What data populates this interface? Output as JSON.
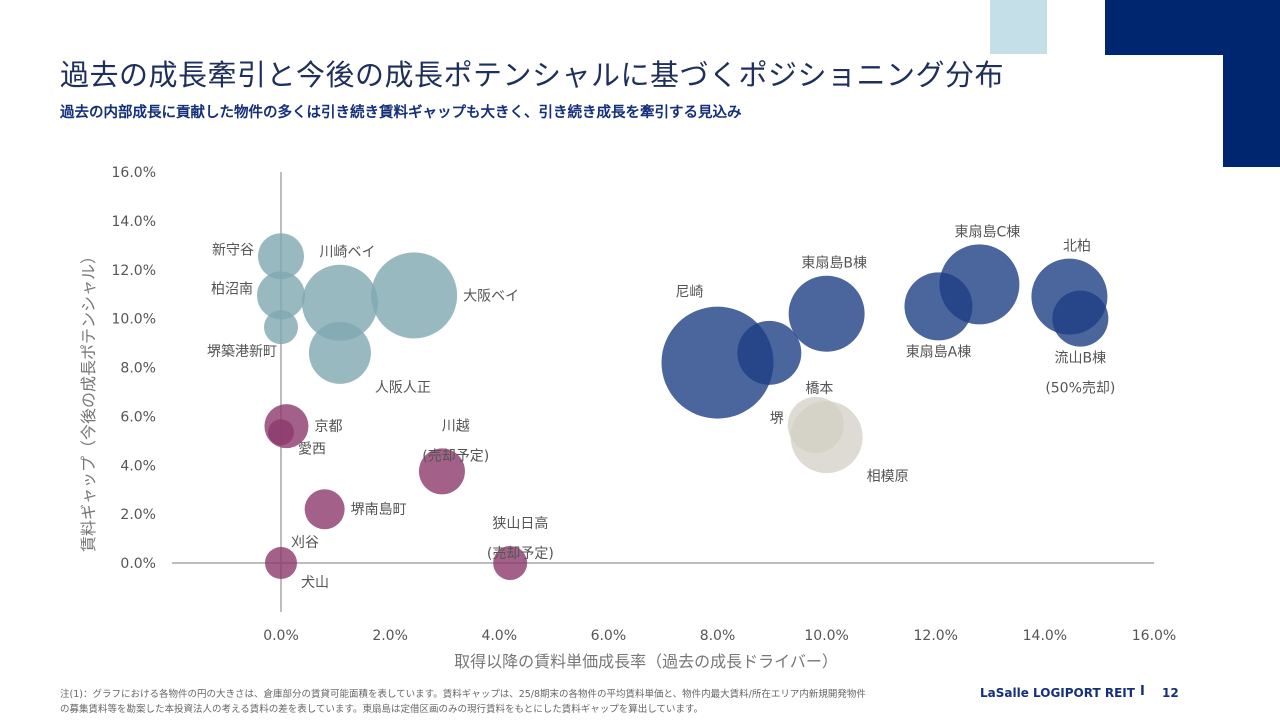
{
  "header": {
    "title": "過去の成長牽引と今後の成長ポテンシャルに基づくポジショニング分布",
    "subtitle": "過去の内部成長に貢献した物件の多くは引き続き賃料ギャップも大きく、引き続き成長を牽引する見込み"
  },
  "colors": {
    "brand_dark": "#00266f",
    "brand_light": "#c5dfe9",
    "teal_group": "#7fa8b2",
    "purple_group": "#8c3a6b",
    "navy_group": "#1e3f85",
    "beige_group": "#d2cfc4"
  },
  "chart_data": {
    "type": "scatter",
    "subtype": "bubble",
    "title": "過去の成長牽引と今後の成長ポテンシャルに基づくポジショニング分布",
    "xlabel": "取得以降の賃料単価成長率（過去の成長ドライバー）",
    "ylabel": "賃料ギャップ（今後の成長ポテンシャル）",
    "xlim": [
      0,
      16
    ],
    "ylim": [
      0,
      16
    ],
    "x_ticks": [
      "0.0%",
      "2.0%",
      "4.0%",
      "6.0%",
      "8.0%",
      "10.0%",
      "12.0%",
      "14.0%",
      "16.0%"
    ],
    "y_ticks": [
      "0.0%",
      "2.0%",
      "4.0%",
      "6.0%",
      "8.0%",
      "10.0%",
      "12.0%",
      "14.0%",
      "16.0%"
    ],
    "size_meaning": "倉庫部分の賃貸可能面積（相対値）",
    "grid": false,
    "series": [
      {
        "name": "teal",
        "color": "#7fa8b2",
        "points": [
          {
            "label": "新守谷",
            "x": 0.0,
            "y": 12.55,
            "size": 23,
            "label_pos": "left"
          },
          {
            "label": "柏沼南",
            "x": 0.0,
            "y": 10.95,
            "size": 24,
            "label_pos": "left"
          },
          {
            "label": "堺築港新町",
            "x": 0.0,
            "y": 9.65,
            "size": 17,
            "label_pos": "below-left"
          },
          {
            "label": "川崎ベイ",
            "x": 1.08,
            "y": 10.65,
            "size": 38,
            "label_pos": "top"
          },
          {
            "label": "大阪ベイ",
            "x": 2.44,
            "y": 10.95,
            "size": 43,
            "label_pos": "right"
          },
          {
            "label": "人阪人正",
            "x": 1.08,
            "y": 8.6,
            "size": 31,
            "label_pos": "below-right"
          }
        ]
      },
      {
        "name": "purple",
        "color": "#8c3a6b",
        "points": [
          {
            "label": "京都",
            "x": 0.1,
            "y": 5.6,
            "size": 22,
            "label_pos": "right"
          },
          {
            "label": "愛西",
            "x": 0.0,
            "y": 5.35,
            "size": 13,
            "label_pos": "below-right"
          },
          {
            "label": "堺南島町",
            "x": 0.8,
            "y": 2.2,
            "size": 20,
            "label_pos": "right"
          },
          {
            "label": "刈谷",
            "x": 0.0,
            "y": 0.0,
            "size": 16,
            "label_pos": "above-right"
          },
          {
            "label": "犬山",
            "x": 0.0,
            "y": 0.0,
            "size": 16,
            "label_pos": "below-right"
          },
          {
            "label": "川越\n(売却予定)",
            "x": 2.95,
            "y": 3.75,
            "size": 23,
            "label_pos": "upper-right"
          },
          {
            "label": "狭山日高\n(売却予定)",
            "x": 4.2,
            "y": 0.0,
            "size": 17,
            "label_pos": "upper-right"
          }
        ]
      },
      {
        "name": "navy",
        "color": "#1e3f85",
        "points": [
          {
            "label": "尼崎",
            "x": 8.0,
            "y": 8.2,
            "size": 56,
            "label_pos": "upper-left"
          },
          {
            "label": "橋本",
            "x": 8.95,
            "y": 8.6,
            "size": 32,
            "label_pos": "below-right"
          },
          {
            "label": "東扇島B棟",
            "x": 10.0,
            "y": 10.2,
            "size": 38,
            "label_pos": "top"
          },
          {
            "label": "東扇島A棟",
            "x": 12.05,
            "y": 10.5,
            "size": 34,
            "label_pos": "below"
          },
          {
            "label": "東扇島C棟",
            "x": 12.8,
            "y": 11.4,
            "size": 40,
            "label_pos": "top"
          },
          {
            "label": "北柏",
            "x": 14.45,
            "y": 10.9,
            "size": 38,
            "label_pos": "top"
          },
          {
            "label": "流山B棟\n(50%売却)",
            "x": 14.65,
            "y": 10.0,
            "size": 28,
            "label_pos": "below"
          }
        ]
      },
      {
        "name": "beige",
        "color": "#d2cfc4",
        "points": [
          {
            "label": "堺",
            "x": 9.8,
            "y": 5.65,
            "size": 28,
            "label_pos": "left"
          },
          {
            "label": "相模原",
            "x": 10.0,
            "y": 5.15,
            "size": 36,
            "label_pos": "below-right"
          }
        ]
      }
    ]
  },
  "footer": {
    "note_line1": "注(1)：グラフにおける各物件の円の大きさは、倉庫部分の賃貸可能面積を表しています。賃料ギャップは、25/8期末の各物件の平均賃料単価と、物件内最大賃料/所在エリア内新規開発物件",
    "note_line2": "の募集賃料等を勘案した本投資法人の考える賃料の差を表しています。東扇島は定借区画のみの現行賃料をもとにした賃料ギャップを算出しています。",
    "brand": "LaSalle LOGIPORT REIT",
    "separator": "I",
    "page_number": "12"
  }
}
